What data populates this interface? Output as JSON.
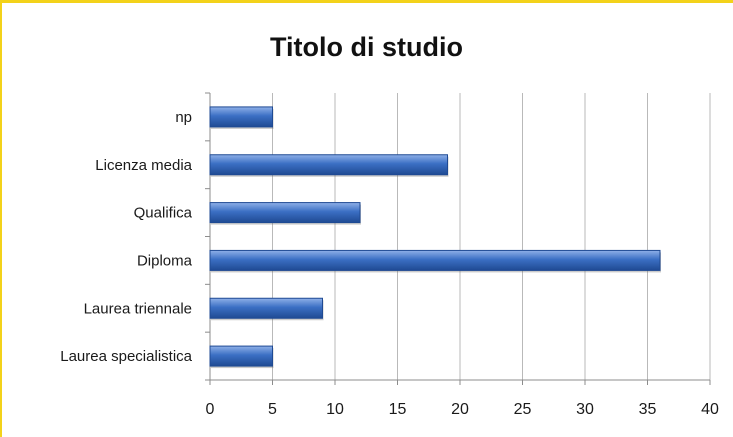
{
  "chart_data": {
    "type": "bar",
    "orientation": "horizontal",
    "title": "Titolo di studio",
    "categories": [
      "np",
      "Licenza media",
      "Qualifica",
      "Diploma",
      "Laurea triennale",
      "Laurea specialistica"
    ],
    "values": [
      5,
      19,
      12,
      36,
      9,
      5
    ],
    "xlim": [
      0,
      40
    ],
    "xticks": [
      0,
      5,
      10,
      15,
      20,
      25,
      30,
      35,
      40
    ],
    "xlabel": "",
    "ylabel": "",
    "grid": true,
    "legend": "none",
    "colors": {
      "bar": "#3b6fc4",
      "bar_light": "#8fb0e8",
      "bar_dark": "#1f4a93",
      "grid": "#b9b9b9",
      "frame": "#f3d21a"
    }
  }
}
